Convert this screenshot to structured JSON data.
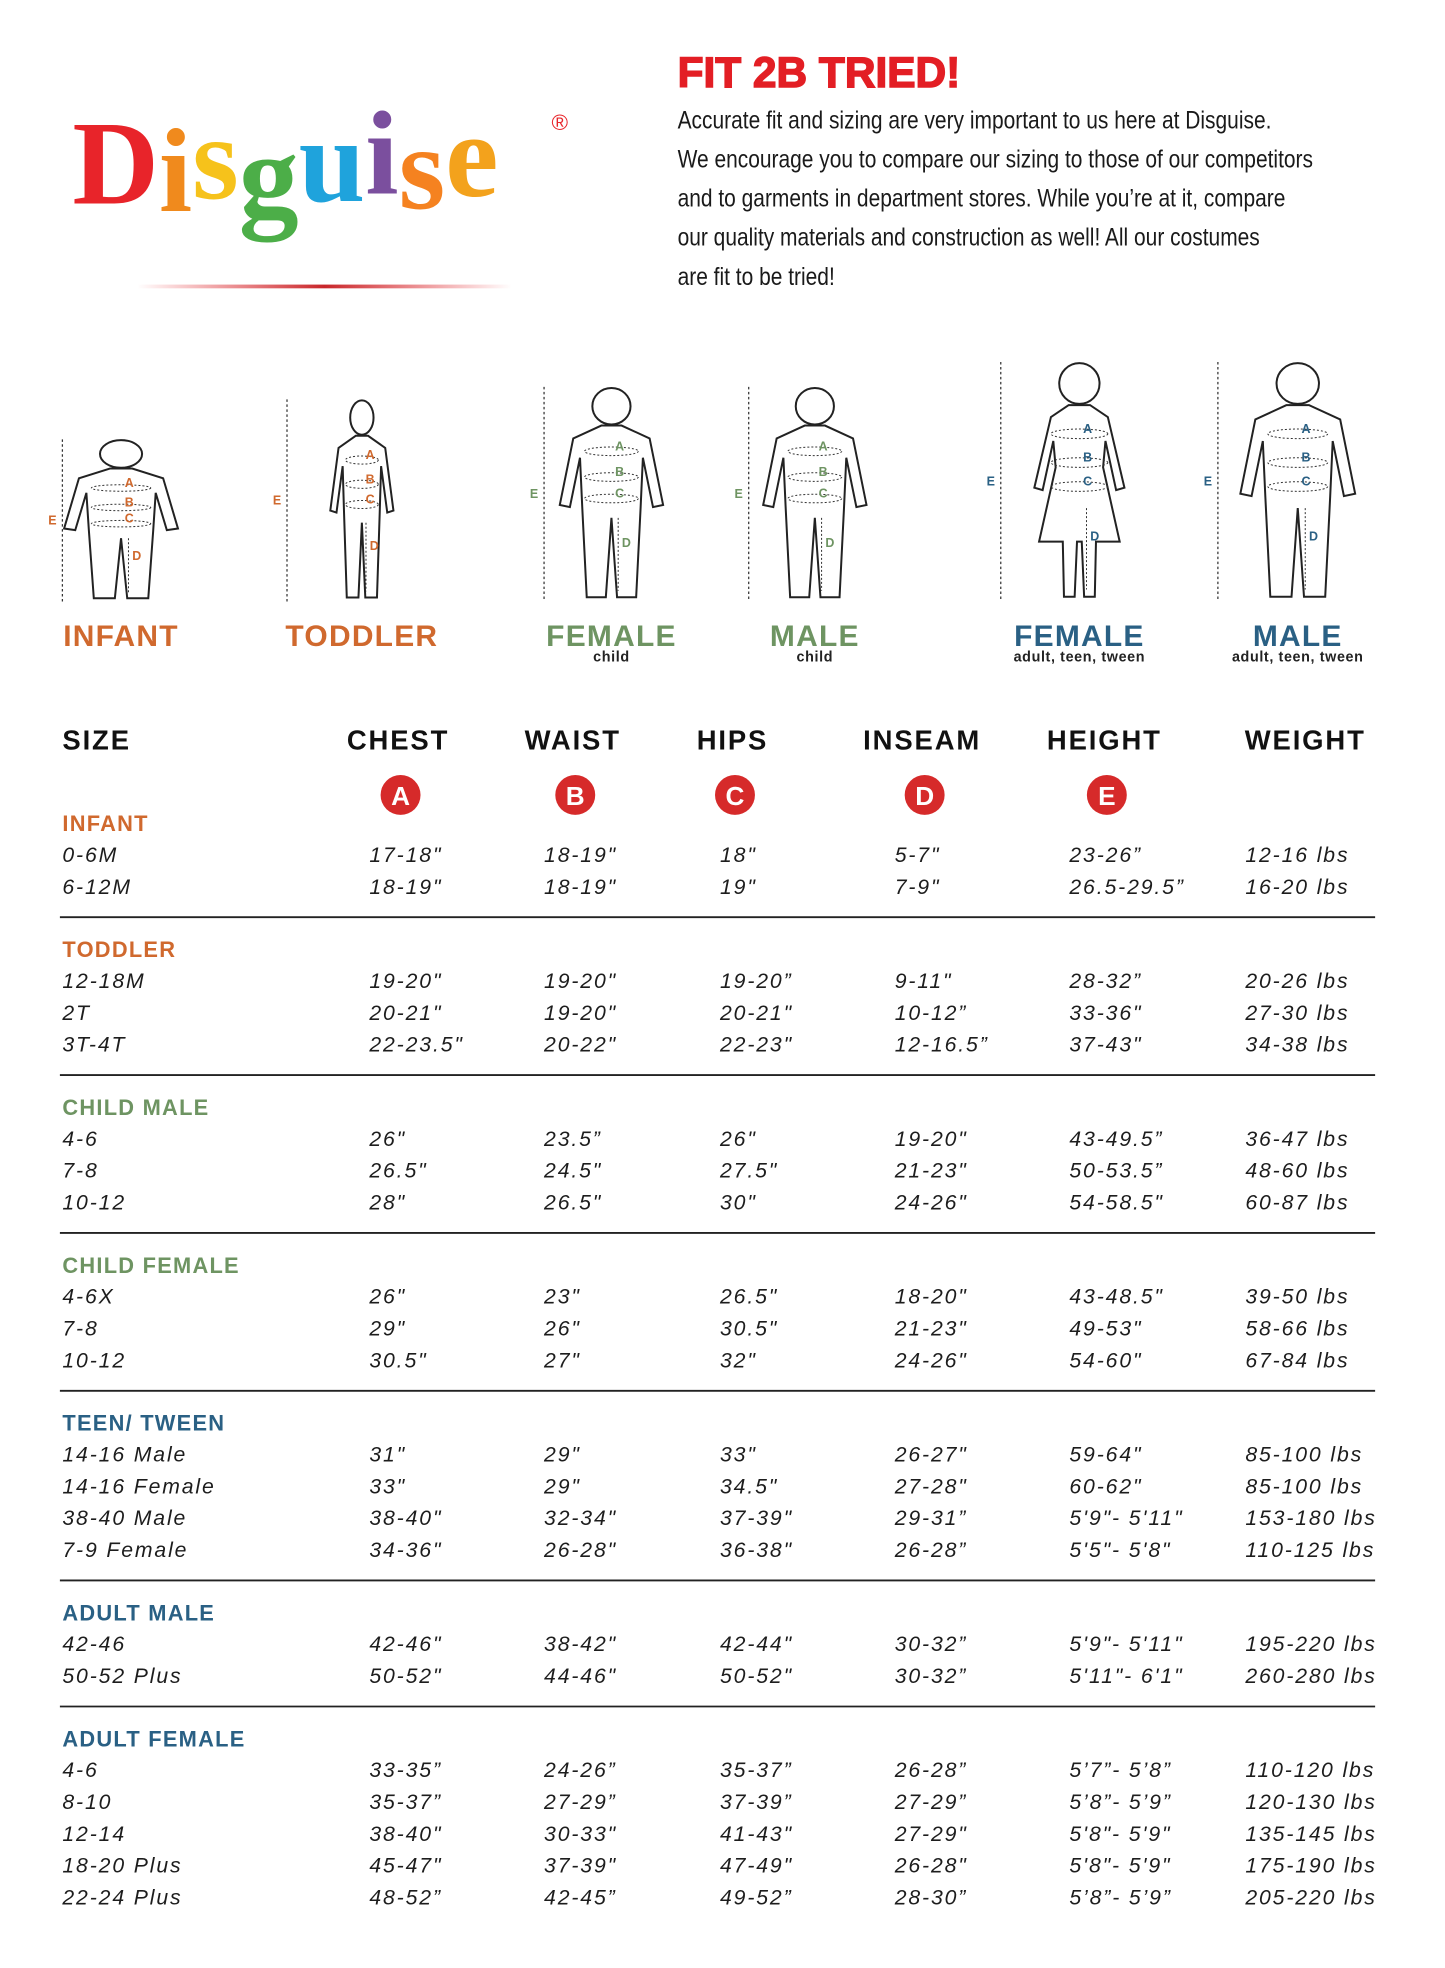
{
  "logo": {
    "letters": [
      "D",
      "i",
      "s",
      "g",
      "u",
      "i",
      "s",
      "e"
    ],
    "colors": [
      "#e8242a",
      "#f08a1d",
      "#f6c21b",
      "#4cae48",
      "#1fa3dc",
      "#7b4f9e",
      "#f58220",
      "#f3a21c"
    ],
    "registered": "®"
  },
  "heading": "FIT 2B TRIED!",
  "intro": [
    "Accurate fit and sizing are very important to us here at Disguise.",
    "We encourage you to compare our sizing to those of our competitors",
    "and to garments in department stores. While you’re at it, compare",
    "our quality materials and construction as well! All our costumes",
    "are fit to be tried!"
  ],
  "figures": [
    {
      "label": "INFANT",
      "color": "#d0692e",
      "markers": [
        "A",
        "B",
        "C",
        "D",
        "E"
      ]
    },
    {
      "label": "TODDLER",
      "color": "#d0692e",
      "markers": [
        "A",
        "B",
        "C",
        "D",
        "E"
      ]
    },
    {
      "label": "FEMALE",
      "sublabel": "child",
      "color": "#6e9462",
      "markers": [
        "A",
        "B",
        "C",
        "D",
        "E"
      ]
    },
    {
      "label": "MALE",
      "sublabel": "child",
      "color": "#6e9462",
      "markers": [
        "A",
        "B",
        "C",
        "D",
        "E"
      ]
    },
    {
      "label": "FEMALE",
      "sublabel": "adult, teen, tween",
      "color": "#2a6084",
      "markers": [
        "A",
        "B",
        "C",
        "D",
        "E"
      ]
    },
    {
      "label": "MALE",
      "sublabel": "adult, teen, tween",
      "color": "#2a6084",
      "markers": [
        "A",
        "B",
        "C",
        "D",
        "E"
      ]
    }
  ],
  "table": {
    "columns": [
      "SIZE",
      "CHEST",
      "WAIST",
      "HIPS",
      "INSEAM",
      "HEIGHT",
      "WEIGHT"
    ],
    "keys": [
      "A",
      "B",
      "C",
      "D",
      "E"
    ],
    "key_color": "#d62a2a",
    "groups": [
      {
        "name": "INFANT",
        "color": "#d0692e",
        "rows": [
          [
            "0-6M",
            "17-18\"",
            "18-19\"",
            "18\"",
            "5-7\"",
            "23-26”",
            "12-16 lbs"
          ],
          [
            "6-12M",
            "18-19\"",
            "18-19\"",
            "19\"",
            "7-9\"",
            "26.5-29.5”",
            "16-20 lbs"
          ]
        ]
      },
      {
        "name": "TODDLER",
        "color": "#d0692e",
        "rows": [
          [
            "12-18M",
            "19-20\"",
            "19-20\"",
            "19-20”",
            "9-11\"",
            "28-32”",
            "20-26 lbs"
          ],
          [
            "2T",
            "20-21\"",
            "19-20\"",
            "20-21\"",
            "10-12”",
            "33-36\"",
            "27-30 lbs"
          ],
          [
            "3T-4T",
            "22-23.5\"",
            "20-22\"",
            "22-23\"",
            "12-16.5”",
            "37-43\"",
            "34-38 lbs"
          ]
        ]
      },
      {
        "name": "CHILD MALE",
        "color": "#6e9462",
        "rows": [
          [
            "4-6",
            "26\"",
            "23.5”",
            "26\"",
            "19-20\"",
            "43-49.5”",
            "36-47 lbs"
          ],
          [
            "7-8",
            "26.5\"",
            "24.5\"",
            "27.5\"",
            "21-23\"",
            "50-53.5”",
            "48-60 lbs"
          ],
          [
            "10-12",
            "28\"",
            "26.5\"",
            "30\"",
            "24-26\"",
            "54-58.5\"",
            "60-87 lbs"
          ]
        ]
      },
      {
        "name": "CHILD FEMALE",
        "color": "#6e9462",
        "rows": [
          [
            "4-6X",
            "26\"",
            "23\"",
            "26.5\"",
            "18-20\"",
            "43-48.5\"",
            "39-50 lbs"
          ],
          [
            "7-8",
            "29\"",
            "26\"",
            "30.5\"",
            "21-23\"",
            "49-53\"",
            "58-66 lbs"
          ],
          [
            "10-12",
            "30.5\"",
            "27\"",
            "32\"",
            "24-26\"",
            "54-60\"",
            "67-84 lbs"
          ]
        ]
      },
      {
        "name": "TEEN/ TWEEN",
        "color": "#2a6084",
        "rows": [
          [
            "14-16 Male",
            "31\"",
            "29\"",
            "33\"",
            "26-27\"",
            "59-64\"",
            "85-100 lbs"
          ],
          [
            "14-16 Female",
            "33\"",
            "29\"",
            "34.5\"",
            "27-28\"",
            "60-62\"",
            "85-100 lbs"
          ],
          [
            "38-40 Male",
            "38-40\"",
            "32-34\"",
            "37-39\"",
            "29-31”",
            "5'9\"- 5'11\"",
            "153-180 lbs"
          ],
          [
            "7-9 Female",
            "34-36\"",
            "26-28\"",
            "36-38\"",
            "26-28”",
            "5'5\"- 5'8\"",
            "110-125 lbs"
          ]
        ]
      },
      {
        "name": "ADULT MALE",
        "color": "#2a6084",
        "rows": [
          [
            "42-46",
            "42-46\"",
            "38-42\"",
            "42-44\"",
            "30-32”",
            "5'9\"- 5'11\"",
            "195-220 lbs"
          ],
          [
            "50-52 Plus",
            "50-52\"",
            "44-46\"",
            "50-52\"",
            "30-32”",
            "5'11\"- 6'1\"",
            "260-280 lbs"
          ]
        ]
      },
      {
        "name": "ADULT FEMALE",
        "color": "#2a6084",
        "rows": [
          [
            "4-6",
            "33-35”",
            "24-26”",
            "35-37”",
            "26-28”",
            "5’7”- 5’8”",
            "110-120 lbs"
          ],
          [
            "8-10",
            "35-37”",
            "27-29”",
            "37-39”",
            "27-29”",
            "5’8”- 5’9”",
            "120-130 lbs"
          ],
          [
            "12-14",
            "38-40\"",
            "30-33\"",
            "41-43\"",
            "27-29\"",
            "5'8\"- 5'9\"",
            "135-145 lbs"
          ],
          [
            "18-20 Plus",
            "45-47\"",
            "37-39\"",
            "47-49\"",
            "26-28\"",
            "5'8\"- 5'9\"",
            "175-190 lbs"
          ],
          [
            "22-24 Plus",
            "48-52”",
            "42-45”",
            "49-52”",
            "28-30”",
            "5’8”- 5’9”",
            "205-220 lbs"
          ]
        ]
      }
    ]
  }
}
